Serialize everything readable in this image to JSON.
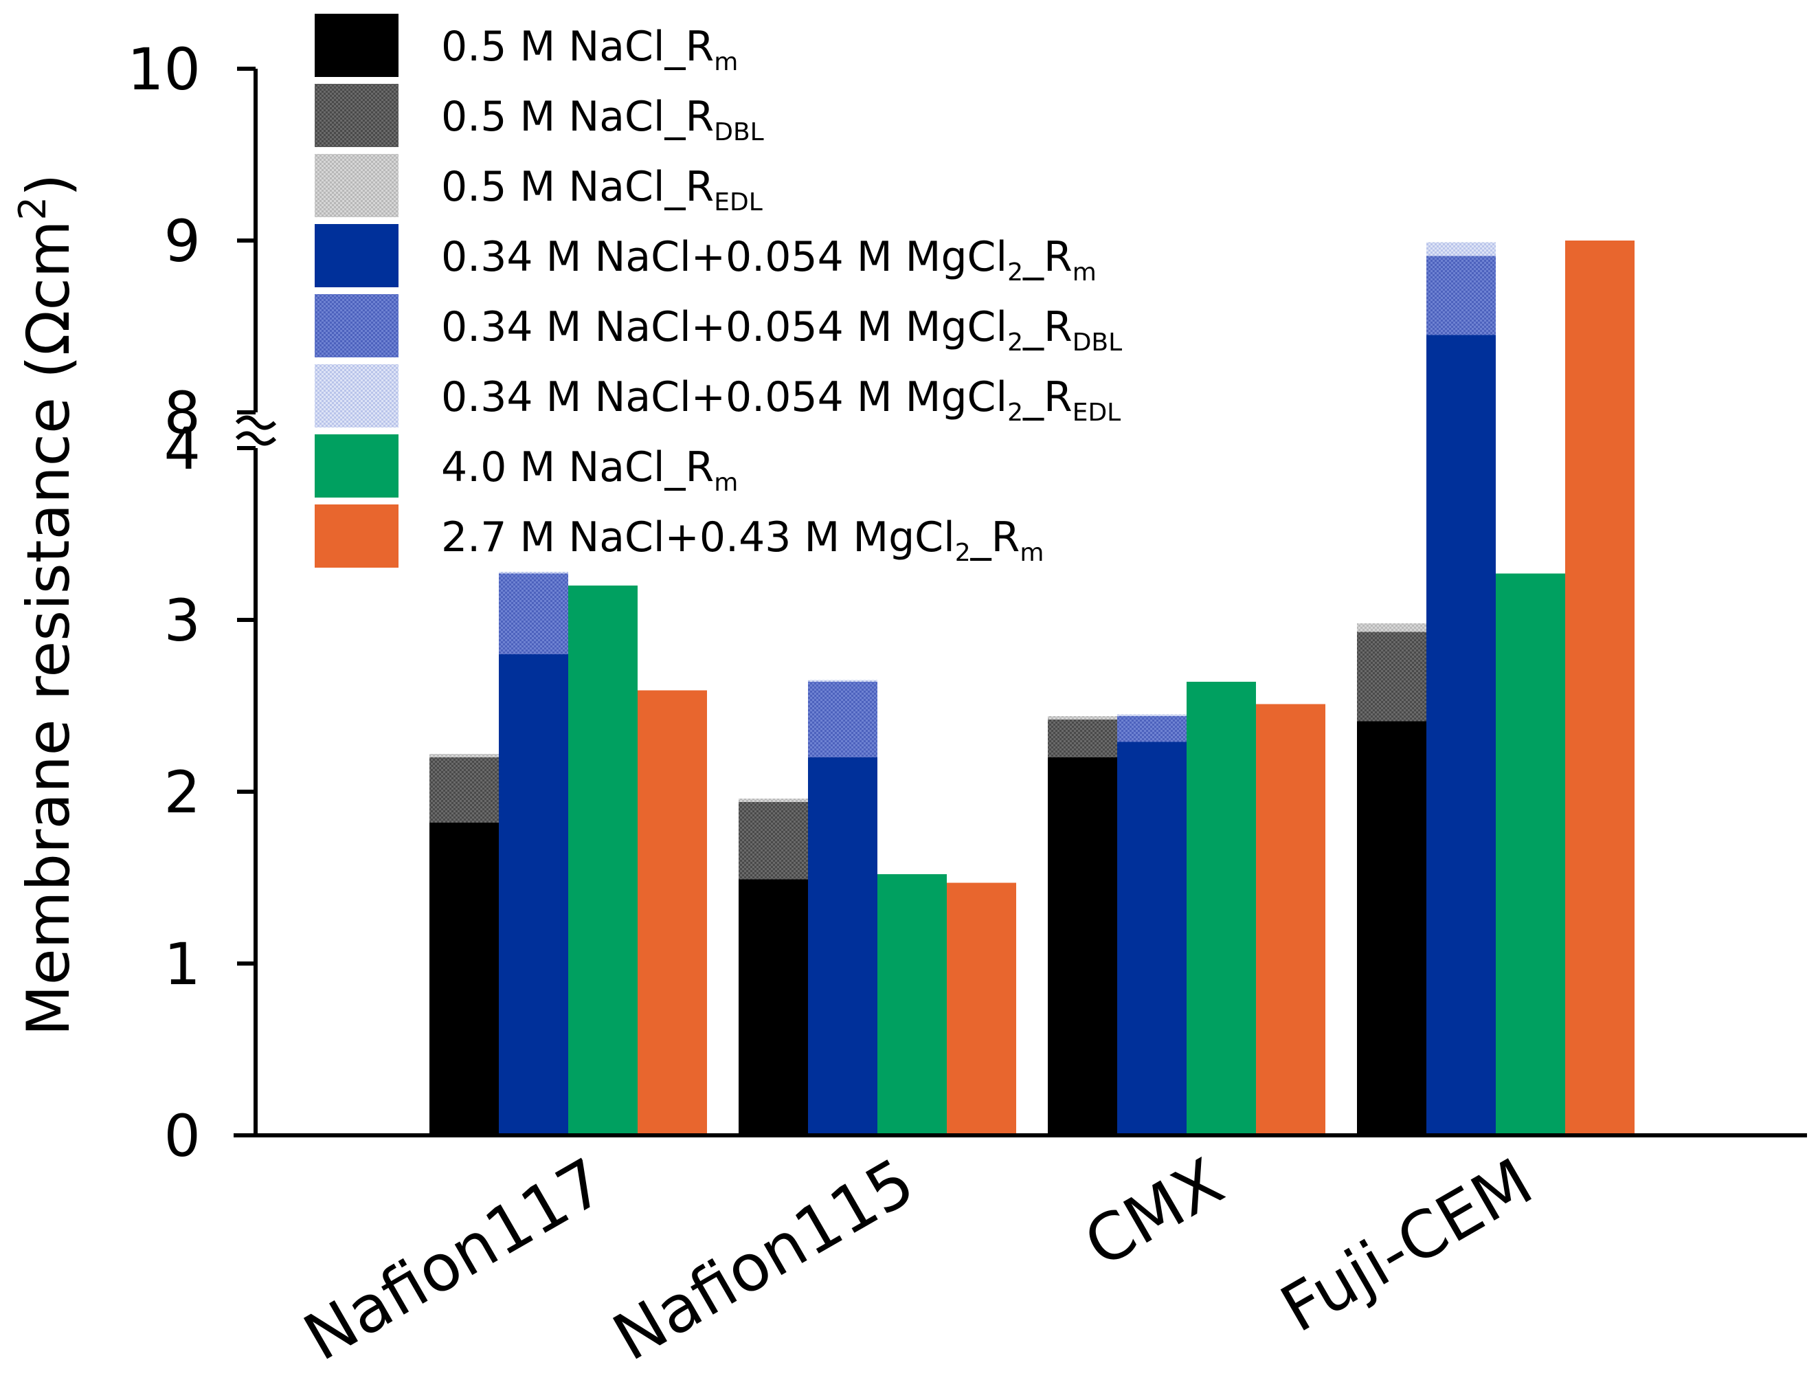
{
  "chart_data": {
    "type": "bar",
    "stacked_groups": true,
    "ylabel": "Membrane resistance (Ωcm²)",
    "ylabel_parts": {
      "main": "Membrane resistance (Ωcm",
      "sup": "2",
      "close": ")"
    },
    "xlabel": "",
    "y_axis_break": {
      "lower_range": [
        0,
        4
      ],
      "upper_range": [
        8,
        10
      ]
    },
    "y_ticks": [
      "0",
      "1",
      "2",
      "3",
      "4",
      "8",
      "9",
      "10"
    ],
    "categories": [
      "Nafion117",
      "Nafion115",
      "CMX",
      "Fuji-CEM"
    ],
    "colors": {
      "nacl_rm": "#000000",
      "nacl_rdbl": "#5a5a5a",
      "nacl_redl": "#c8c8c8",
      "mix_rm": "#00309a",
      "mix_rdbl": "#6073c8",
      "mix_redl": "#c4cfee",
      "conc_nacl_rm": "#00a060",
      "conc_mix_rm": "#e8662e"
    },
    "legend": [
      {
        "key": "nacl_rm",
        "label": "0.5 M NaCl_R",
        "sub": "m",
        "suffix": ""
      },
      {
        "key": "nacl_rdbl",
        "label": "0.5 M NaCl_R",
        "sub": "DBL",
        "suffix": ""
      },
      {
        "key": "nacl_redl",
        "label": "0.5 M NaCl_R",
        "sub": "EDL",
        "suffix": ""
      },
      {
        "key": "mix_rm",
        "label": "0.34 M NaCl+0.054 M MgCl",
        "sub2": "2",
        "label2": "_R",
        "sub": "m"
      },
      {
        "key": "mix_rdbl",
        "label": "0.34 M NaCl+0.054 M MgCl",
        "sub2": "2",
        "label2": "_R",
        "sub": "DBL"
      },
      {
        "key": "mix_redl",
        "label": "0.34 M NaCl+0.054 M MgCl",
        "sub2": "2",
        "label2": "_R",
        "sub": "EDL"
      },
      {
        "key": "conc_nacl_rm",
        "label": "4.0 M NaCl_R",
        "sub": "m",
        "suffix": ""
      },
      {
        "key": "conc_mix_rm",
        "label": "2.7 M NaCl+0.43 M MgCl",
        "sub2": "2",
        "label2": "_R",
        "sub": "m"
      }
    ],
    "bars": [
      {
        "name": "0.5 M NaCl",
        "stack": [
          {
            "key": "nacl_rm",
            "values": [
              1.82,
              1.49,
              2.2,
              2.41
            ]
          },
          {
            "key": "nacl_rdbl",
            "values": [
              0.38,
              0.45,
              0.22,
              0.52
            ]
          },
          {
            "key": "nacl_redl",
            "values": [
              0.02,
              0.02,
              0.02,
              0.05
            ]
          }
        ]
      },
      {
        "name": "0.34 M NaCl+0.054 M MgCl2",
        "stack": [
          {
            "key": "mix_rm",
            "values": [
              2.8,
              2.2,
              2.29,
              8.45
            ]
          },
          {
            "key": "mix_rdbl",
            "values": [
              0.47,
              0.44,
              0.15,
              0.46
            ]
          },
          {
            "key": "mix_redl",
            "values": [
              0.01,
              0.01,
              0.01,
              0.08
            ]
          }
        ]
      },
      {
        "name": "4.0 M NaCl",
        "stack": [
          {
            "key": "conc_nacl_rm",
            "values": [
              3.2,
              1.52,
              2.64,
              3.27
            ]
          }
        ]
      },
      {
        "name": "2.7 M NaCl+0.43 M MgCl2",
        "stack": [
          {
            "key": "conc_mix_rm",
            "values": [
              2.59,
              1.47,
              2.51,
              9.0
            ]
          }
        ]
      }
    ]
  }
}
